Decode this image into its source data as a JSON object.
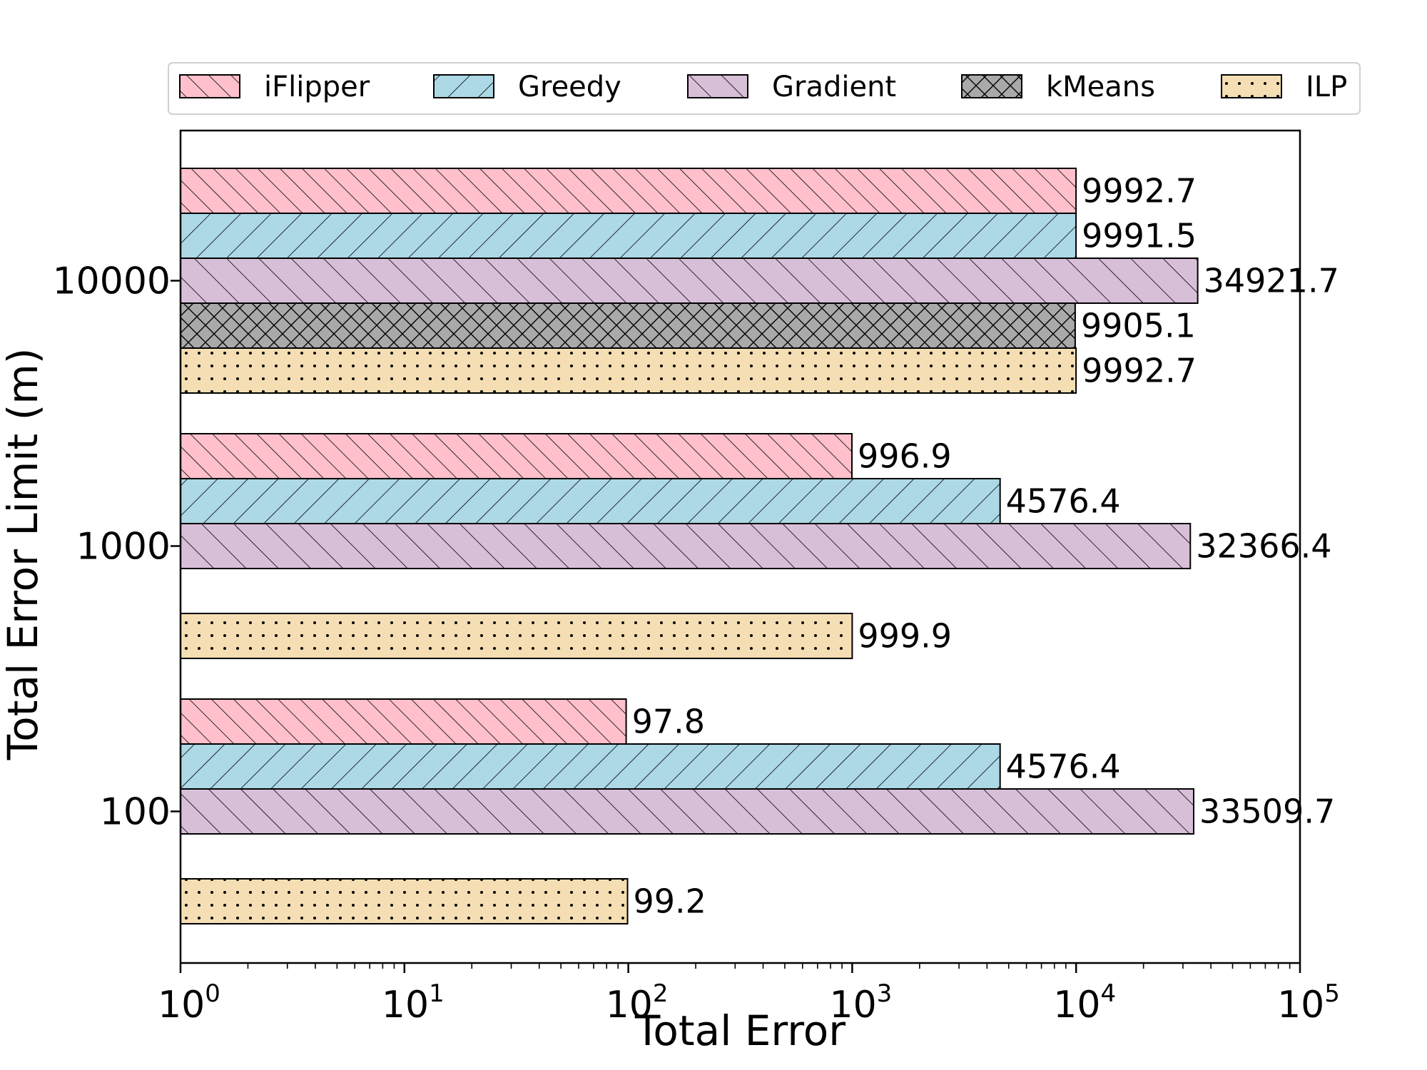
{
  "chart_data": {
    "type": "bar",
    "orientation": "horizontal",
    "xlabel": "Total Error",
    "ylabel": "Total Error Limit (m)",
    "xscale": "log",
    "xlim": [
      1,
      100000
    ],
    "x_tick_labels": [
      {
        "base": "10",
        "exp": "0",
        "value": 1
      },
      {
        "base": "10",
        "exp": "1",
        "value": 10
      },
      {
        "base": "10",
        "exp": "2",
        "value": 100
      },
      {
        "base": "10",
        "exp": "3",
        "value": 1000
      },
      {
        "base": "10",
        "exp": "4",
        "value": 10000
      },
      {
        "base": "10",
        "exp": "5",
        "value": 100000
      }
    ],
    "categories": [
      "10000",
      "1000",
      "100"
    ],
    "legend_position": "top",
    "series": [
      {
        "name": "iFlipper",
        "color": "#ffc0cb",
        "hatch": "forward-diagonal",
        "values": [
          9992.7,
          996.9,
          97.8
        ],
        "labels": [
          "9992.7",
          "996.9",
          "97.8"
        ]
      },
      {
        "name": "Greedy",
        "color": "#add8e6",
        "hatch": "back-diagonal",
        "values": [
          9991.5,
          4576.4,
          4576.4
        ],
        "labels": [
          "9991.5",
          "4576.4",
          "4576.4"
        ]
      },
      {
        "name": "Gradient",
        "color": "#d8bfd8",
        "hatch": "forward-diagonal-wide",
        "values": [
          34921.7,
          32366.4,
          33509.7
        ],
        "labels": [
          "34921.7",
          "32366.4",
          "33509.7"
        ]
      },
      {
        "name": "kMeans",
        "color": "#a9a9a9",
        "hatch": "crosshatch",
        "values": [
          9905.1,
          null,
          null
        ],
        "labels": [
          "9905.1",
          "",
          ""
        ]
      },
      {
        "name": "ILP",
        "color": "#f5deb3",
        "hatch": "dots",
        "values": [
          9992.7,
          999.9,
          99.2
        ],
        "labels": [
          "9992.7",
          "999.9",
          "99.2"
        ]
      }
    ]
  }
}
